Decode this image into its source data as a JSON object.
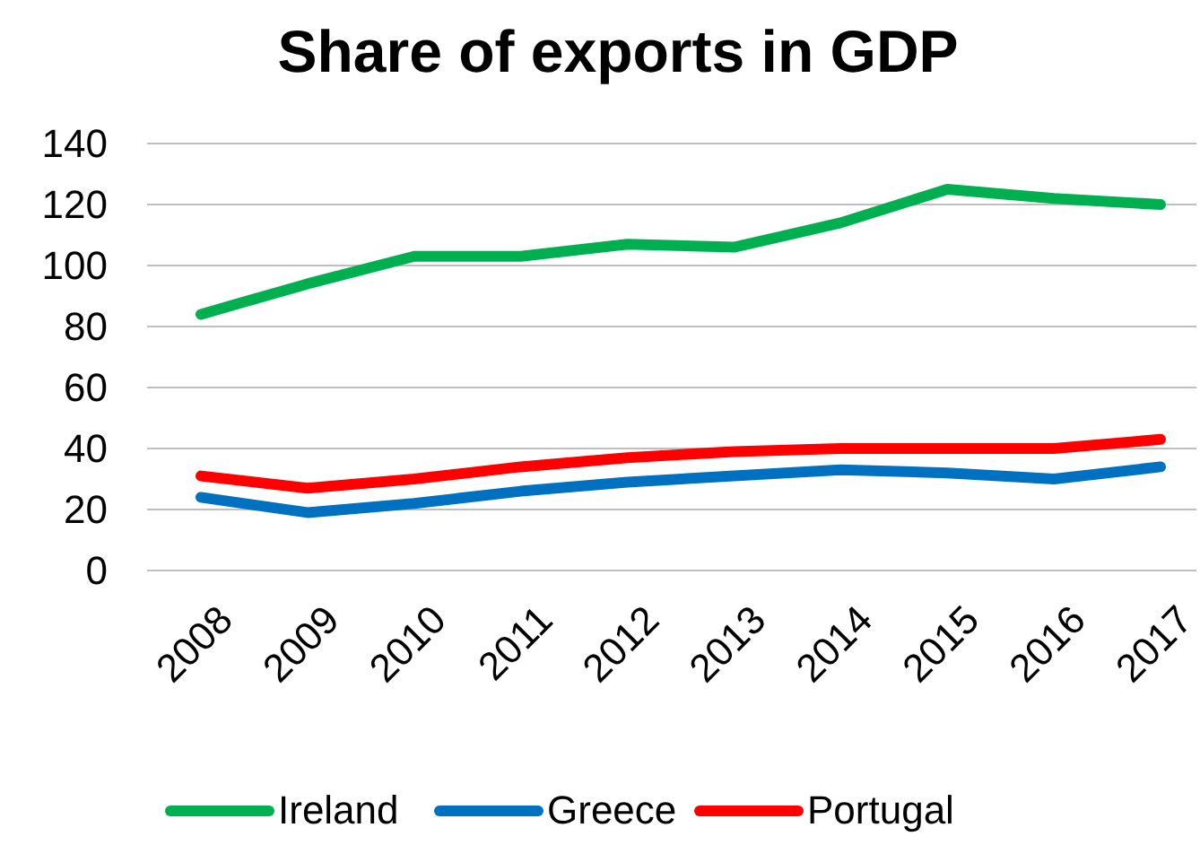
{
  "chart_data": {
    "type": "line",
    "title": "Share of exports in GDP",
    "categories": [
      "2008",
      "2009",
      "2010",
      "2011",
      "2012",
      "2013",
      "2014",
      "2015",
      "2016",
      "2017"
    ],
    "series": [
      {
        "name": "Ireland",
        "color": "#00b050",
        "values": [
          84,
          94,
          103,
          103,
          107,
          106,
          114,
          125,
          122,
          120
        ]
      },
      {
        "name": "Greece",
        "color": "#0070c0",
        "values": [
          24,
          19,
          22,
          26,
          29,
          31,
          33,
          32,
          30,
          34
        ]
      },
      {
        "name": "Portugal",
        "color": "#ff0000",
        "values": [
          31,
          27,
          30,
          34,
          37,
          39,
          40,
          40,
          40,
          43
        ]
      }
    ],
    "ylim": [
      0,
      140
    ],
    "yticks": [
      0,
      20,
      40,
      60,
      80,
      100,
      120,
      140
    ],
    "grid": "y",
    "legend": "bottom",
    "marker": "none",
    "line_style": "solid"
  }
}
